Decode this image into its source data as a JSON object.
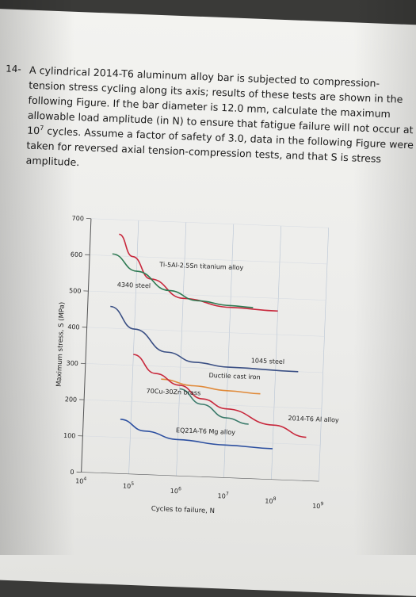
{
  "question": {
    "number": "14-",
    "lines": [
      "A cylindrical 2014-T6 aluminum alloy bar is subjected to compression-",
      "tension stress cycling along its axis; results of these tests are shown in the",
      "following Figure. If the bar diameter is 12.0 mm, calculate the maximum",
      "allowable load amplitude (in N) to ensure that fatigue failure will not occur at",
      "cycles. Assume a factor of safety of 3.0, data in the following Figure were",
      "taken for reversed axial tension-compression tests, and that S is stress",
      "amplitude."
    ],
    "cycles_base": "10",
    "cycles_exp": "7"
  },
  "chart_data": {
    "type": "line",
    "xlabel": "Cycles to failure, N",
    "ylabel": "Maximum stress, S (MPa)",
    "x_scale": "log",
    "xlim": [
      10000,
      1000000000
    ],
    "ylim": [
      0,
      700
    ],
    "y_ticks": [
      "0",
      "100",
      "200",
      "300",
      "400",
      "500",
      "600",
      "700"
    ],
    "x_ticks": [
      {
        "base": "10",
        "exp": "4"
      },
      {
        "base": "10",
        "exp": "5"
      },
      {
        "base": "10",
        "exp": "6"
      },
      {
        "base": "10",
        "exp": "7"
      },
      {
        "base": "10",
        "exp": "8"
      },
      {
        "base": "10",
        "exp": "9"
      }
    ],
    "series": [
      {
        "name": "Ti-5Al-2.5Sn titanium alloy",
        "color": "#c8283c",
        "points": [
          [
            40000,
            660
          ],
          [
            80000,
            600
          ],
          [
            200000,
            540
          ],
          [
            1000000,
            490
          ],
          [
            10000000,
            470
          ],
          [
            100000000,
            465
          ]
        ]
      },
      {
        "name": "4340 steel",
        "color": "#2e7a52",
        "points": [
          [
            30000,
            605
          ],
          [
            100000,
            560
          ],
          [
            500000,
            510
          ],
          [
            2000000,
            485
          ],
          [
            10000000,
            475
          ],
          [
            30000000,
            472
          ]
        ]
      },
      {
        "name": "1045 steel",
        "color": "#3a4f84",
        "points": [
          [
            30000,
            460
          ],
          [
            100000,
            400
          ],
          [
            500000,
            340
          ],
          [
            2000000,
            315
          ],
          [
            10000000,
            305
          ],
          [
            300000000,
            300
          ]
        ]
      },
      {
        "name": "Ductile cast iron",
        "color": "#e08a3a",
        "points": [
          [
            400000,
            265
          ],
          [
            2000000,
            250
          ],
          [
            10000000,
            240
          ],
          [
            50000000,
            235
          ]
        ]
      },
      {
        "name": "70Cu-30Zn brass",
        "color": "#3a7a6a",
        "points": [
          [
            1000000,
            240
          ],
          [
            3000000,
            200
          ],
          [
            10000000,
            165
          ],
          [
            30000000,
            150
          ]
        ]
      },
      {
        "name": "2014-T6 Al alloy",
        "color": "#c8283c",
        "points": [
          [
            100000,
            330
          ],
          [
            300000,
            280
          ],
          [
            1000000,
            250
          ],
          [
            3000000,
            215
          ],
          [
            10000000,
            190
          ],
          [
            100000000,
            150
          ],
          [
            500000000,
            120
          ]
        ]
      },
      {
        "name": "EQ21A-T6 Mg alloy",
        "color": "#2c4fa0",
        "points": [
          [
            60000,
            150
          ],
          [
            200000,
            120
          ],
          [
            1000000,
            100
          ],
          [
            10000000,
            90
          ],
          [
            100000000,
            85
          ]
        ]
      }
    ],
    "labels": [
      {
        "series": "Ti-5Al-2.5Sn titanium alloy",
        "text": "Ti-5Al-2.5Sn titanium alloy",
        "at": [
          300000,
          575
        ]
      },
      {
        "series": "4340 steel",
        "text": "4340 steel",
        "at": [
          40000,
          515
        ]
      },
      {
        "series": "1045 steel",
        "text": "1045 steel",
        "at": [
          30000000,
          320
        ]
      },
      {
        "series": "Ductile cast iron",
        "text": "Ductile cast iron",
        "at": [
          4000000,
          275
        ]
      },
      {
        "series": "70Cu-30Zn brass",
        "text": "70Cu-30Zn brass",
        "at": [
          200000,
          225
        ]
      },
      {
        "series": "2014-T6 Al alloy",
        "text": "2014-T6 Al alloy",
        "at": [
          200000000,
          165
        ]
      },
      {
        "series": "EQ21A-T6 Mg alloy",
        "text": "EQ21A-T6 Mg alloy",
        "at": [
          900000,
          120
        ]
      }
    ],
    "grid": true
  }
}
